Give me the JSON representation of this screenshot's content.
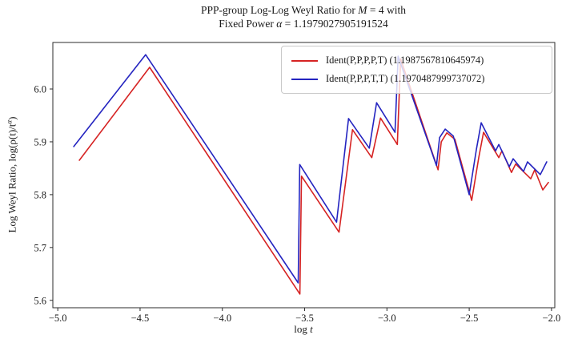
{
  "title": {
    "line1_pre": "PPP-group Log-Log Weyl Ratio for ",
    "line1_var": "M",
    "line1_post": " = 4 with",
    "line2_pre": "Fixed Power ",
    "line2_var": "α",
    "line2_post": " = 1.1979027905191524"
  },
  "axis": {
    "xlabel_pre": "log ",
    "xlabel_var": "t",
    "ylabel_pre": "Log Weyl Ratio, log(ρ(t)/t",
    "ylabel_sup": "α",
    "ylabel_close": ")"
  },
  "legend": {
    "items": [
      {
        "label": "Ident(P,P,P,P,T) (1.1987567810645974)",
        "color": "#d62323"
      },
      {
        "label": "Ident(P,P,P,T,T) (1.1970487999737072)",
        "color": "#2424c0"
      }
    ]
  },
  "chart_data": {
    "type": "line",
    "title": "PPP-group Log-Log Weyl Ratio for M = 4 with Fixed Power α = 1.1979027905191524",
    "xlabel": "log t",
    "ylabel": "Log Weyl Ratio, log(ρ(t)/t^α)",
    "grid": false,
    "legend_position": "upper right",
    "xlim": [
      -5.03,
      -1.98
    ],
    "ylim": [
      5.586,
      6.088
    ],
    "xticks": [
      -5.0,
      -4.5,
      -4.0,
      -3.5,
      -3.0,
      -2.5,
      -2.0
    ],
    "xtick_labels": [
      "−5.0",
      "−4.5",
      "−4.0",
      "−3.5",
      "−3.0",
      "−2.5",
      "−2.0"
    ],
    "yticks": [
      5.6,
      5.7,
      5.8,
      5.9,
      6.0
    ],
    "ytick_labels": [
      "5.6",
      "5.7",
      "5.8",
      "5.9",
      "6.0"
    ],
    "series": [
      {
        "name": "Ident(P,P,P,P,T) (1.1987567810645974)",
        "color": "#d62323",
        "points": [
          [
            -4.869,
            5.865
          ],
          [
            -4.442,
            6.041
          ],
          [
            -3.529,
            5.612
          ],
          [
            -3.519,
            5.835
          ],
          [
            -3.291,
            5.729
          ],
          [
            -3.209,
            5.923
          ],
          [
            -3.092,
            5.87
          ],
          [
            -3.039,
            5.945
          ],
          [
            -2.937,
            5.895
          ],
          [
            -2.917,
            6.057
          ],
          [
            -2.689,
            5.847
          ],
          [
            -2.67,
            5.9
          ],
          [
            -2.636,
            5.917
          ],
          [
            -2.587,
            5.905
          ],
          [
            -2.485,
            5.789
          ],
          [
            -2.442,
            5.87
          ],
          [
            -2.413,
            5.918
          ],
          [
            -2.32,
            5.87
          ],
          [
            -2.301,
            5.883
          ],
          [
            -2.243,
            5.842
          ],
          [
            -2.218,
            5.858
          ],
          [
            -2.126,
            5.83
          ],
          [
            -2.102,
            5.847
          ],
          [
            -2.053,
            5.809
          ],
          [
            -2.019,
            5.823
          ]
        ]
      },
      {
        "name": "Ident(P,P,P,T,T) (1.1970487999737072)",
        "color": "#2424c0",
        "points": [
          [
            -4.903,
            5.891
          ],
          [
            -4.466,
            6.065
          ],
          [
            -3.539,
            5.633
          ],
          [
            -3.53,
            5.857
          ],
          [
            -3.306,
            5.748
          ],
          [
            -3.233,
            5.944
          ],
          [
            -3.107,
            5.888
          ],
          [
            -3.063,
            5.974
          ],
          [
            -2.951,
            5.918
          ],
          [
            -2.932,
            6.062
          ],
          [
            -2.699,
            5.855
          ],
          [
            -2.68,
            5.908
          ],
          [
            -2.646,
            5.924
          ],
          [
            -2.597,
            5.911
          ],
          [
            -2.5,
            5.8
          ],
          [
            -2.456,
            5.886
          ],
          [
            -2.427,
            5.936
          ],
          [
            -2.34,
            5.883
          ],
          [
            -2.32,
            5.895
          ],
          [
            -2.257,
            5.853
          ],
          [
            -2.233,
            5.868
          ],
          [
            -2.17,
            5.844
          ],
          [
            -2.146,
            5.862
          ],
          [
            -2.068,
            5.838
          ],
          [
            -2.029,
            5.862
          ]
        ]
      }
    ]
  }
}
